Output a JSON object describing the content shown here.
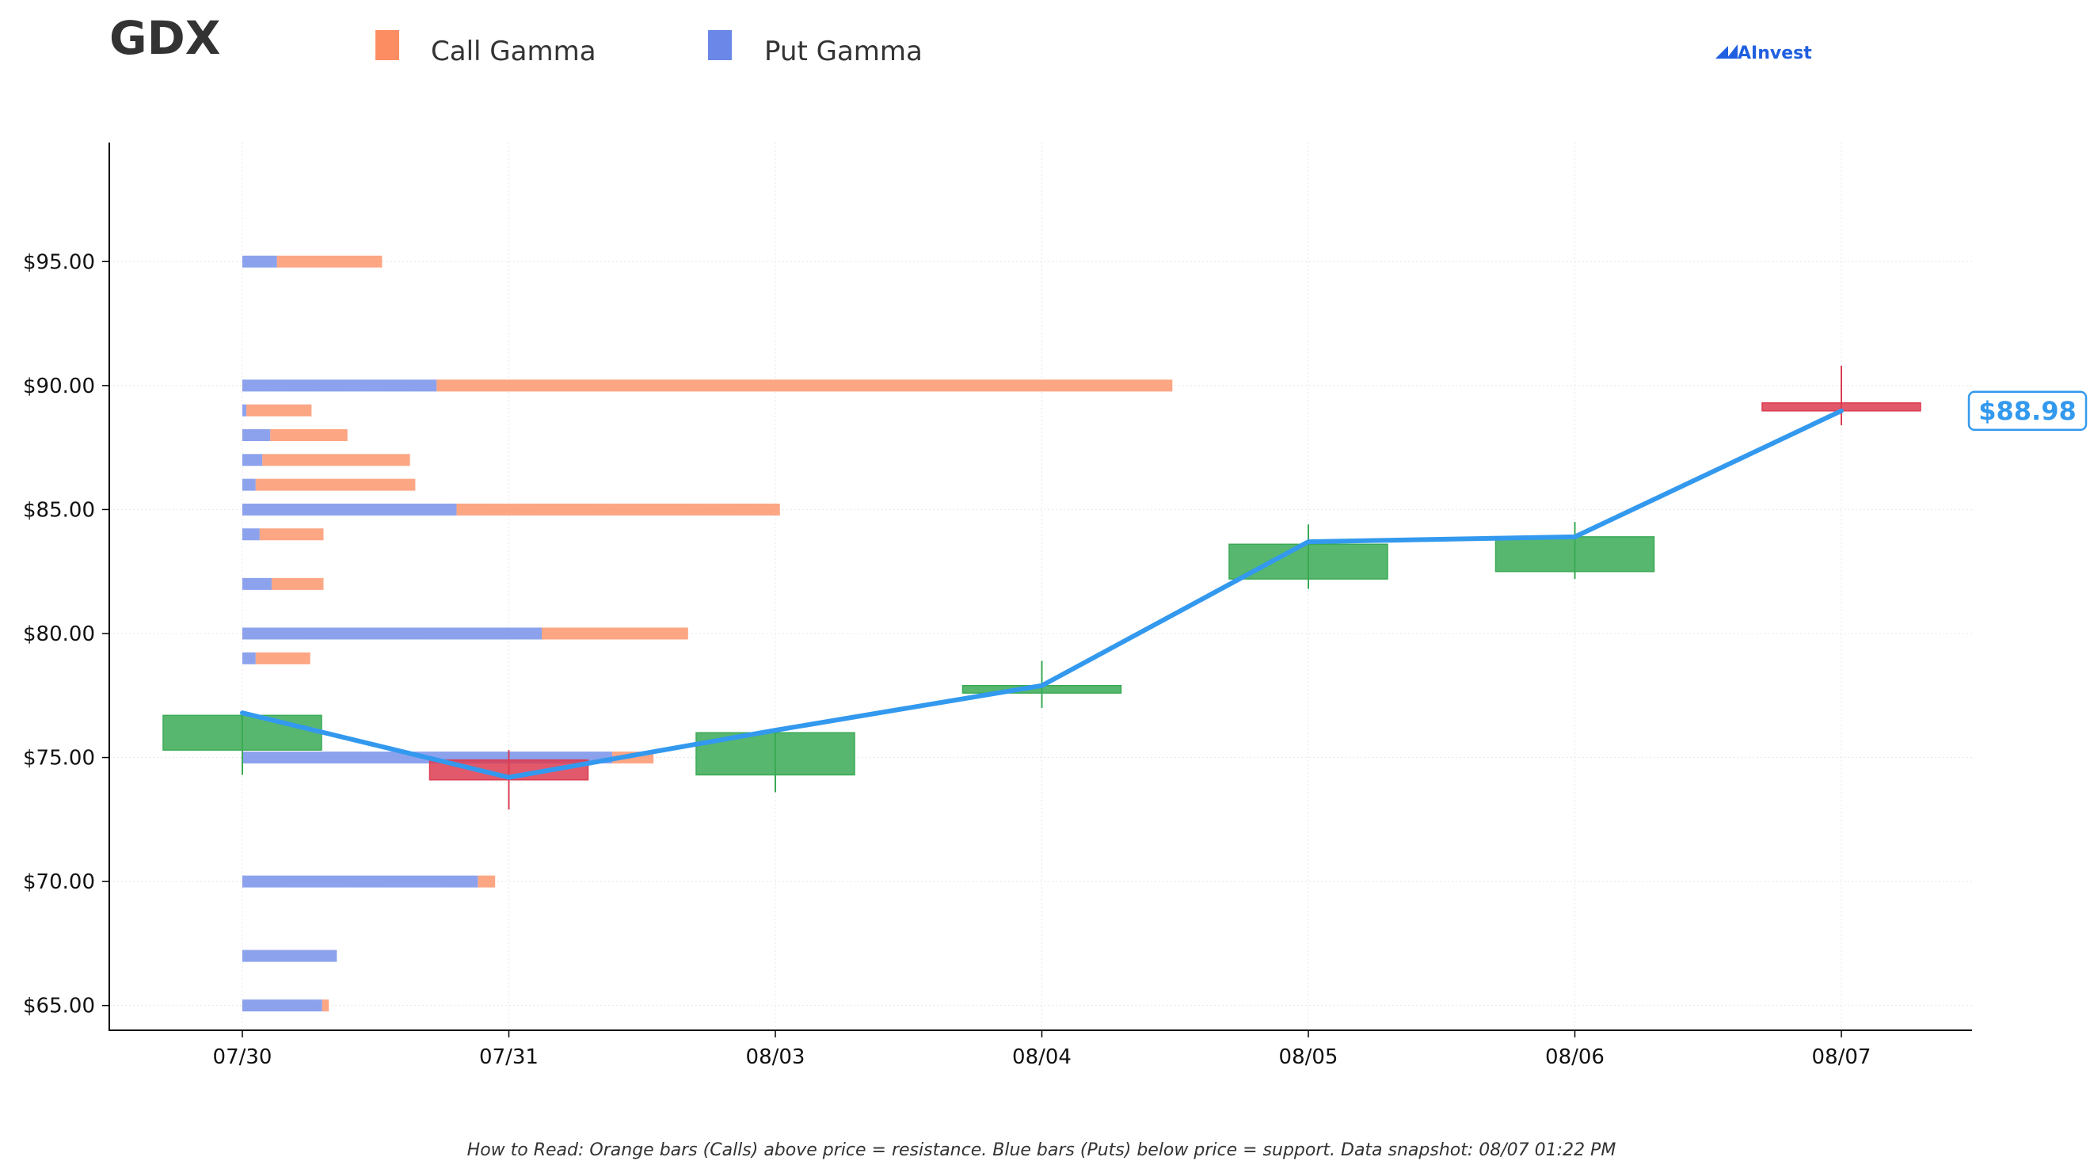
{
  "header": {
    "title": "GDX",
    "legend": [
      {
        "label": "Call Gamma",
        "color": "#fc8d62"
      },
      {
        "label": "Put Gamma",
        "color": "#6b88e8"
      }
    ],
    "brand": "AInvest",
    "brand_icon": "ainvest-logo-icon"
  },
  "footnote": "How to Read: Orange bars (Calls) above price = resistance. Blue bars (Puts) below price = support. Data snapshot: 08/07 01:22 PM",
  "colors": {
    "up": "#3aaa55",
    "down": "#dc3c50",
    "price_line": "#3399ee",
    "call": "#fc8d62",
    "put": "#6b88e8"
  },
  "chart_data": {
    "type": "candlestick",
    "title": "GDX",
    "categories": [
      "07/30",
      "07/31",
      "08/03",
      "08/04",
      "08/05",
      "08/06",
      "08/07"
    ],
    "ylim": [
      64.0,
      99.8
    ],
    "yticks": [
      65,
      70,
      75,
      80,
      85,
      90,
      95
    ],
    "ytick_labels": [
      "$65.00",
      "$70.00",
      "$75.00",
      "$80.00",
      "$85.00",
      "$90.00",
      "$95.00"
    ],
    "grid": true,
    "legend_position": "top-left",
    "candles": [
      {
        "date": "07/30",
        "open": 75.3,
        "close": 76.7,
        "high": 76.8,
        "low": 74.3
      },
      {
        "date": "07/31",
        "open": 74.9,
        "close": 74.1,
        "high": 75.3,
        "low": 72.9
      },
      {
        "date": "08/03",
        "open": 74.3,
        "close": 76.0,
        "high": 76.0,
        "low": 73.6
      },
      {
        "date": "08/04",
        "open": 77.6,
        "close": 77.9,
        "high": 78.9,
        "low": 77.0
      },
      {
        "date": "08/05",
        "open": 82.2,
        "close": 83.6,
        "high": 84.4,
        "low": 81.8
      },
      {
        "date": "08/06",
        "open": 82.5,
        "close": 83.9,
        "high": 84.5,
        "low": 82.2
      },
      {
        "date": "08/07",
        "open": 89.3,
        "close": 88.98,
        "high": 90.8,
        "low": 88.4
      }
    ],
    "price_line": [
      {
        "date": "07/30",
        "value": 76.8
      },
      {
        "date": "07/31",
        "value": 74.2
      },
      {
        "date": "08/03",
        "value": 76.1
      },
      {
        "date": "08/04",
        "value": 77.9
      },
      {
        "date": "08/05",
        "value": 83.7
      },
      {
        "date": "08/06",
        "value": 83.9
      },
      {
        "date": "08/07",
        "value": 88.98
      }
    ],
    "last_price_label": "$88.98",
    "gamma_levels": [
      {
        "strike": 95,
        "put": 0.26,
        "call": 0.79
      },
      {
        "strike": 90,
        "put": 1.46,
        "call": 5.53
      },
      {
        "strike": 89,
        "put": 0.03,
        "call": 0.49
      },
      {
        "strike": 88,
        "put": 0.21,
        "call": 0.58
      },
      {
        "strike": 87,
        "put": 0.15,
        "call": 1.11
      },
      {
        "strike": 86,
        "put": 0.1,
        "call": 1.2
      },
      {
        "strike": 85,
        "put": 1.61,
        "call": 2.43
      },
      {
        "strike": 84,
        "put": 0.13,
        "call": 0.48
      },
      {
        "strike": 82,
        "put": 0.22,
        "call": 0.39
      },
      {
        "strike": 80,
        "put": 2.25,
        "call": 1.1
      },
      {
        "strike": 79,
        "put": 0.1,
        "call": 0.41
      },
      {
        "strike": 75,
        "put": 2.78,
        "call": 0.31
      },
      {
        "strike": 70,
        "put": 1.77,
        "call": 0.13
      },
      {
        "strike": 67,
        "put": 0.71,
        "call": 0
      },
      {
        "strike": 65,
        "put": 0.6,
        "call": 0.05
      }
    ]
  }
}
